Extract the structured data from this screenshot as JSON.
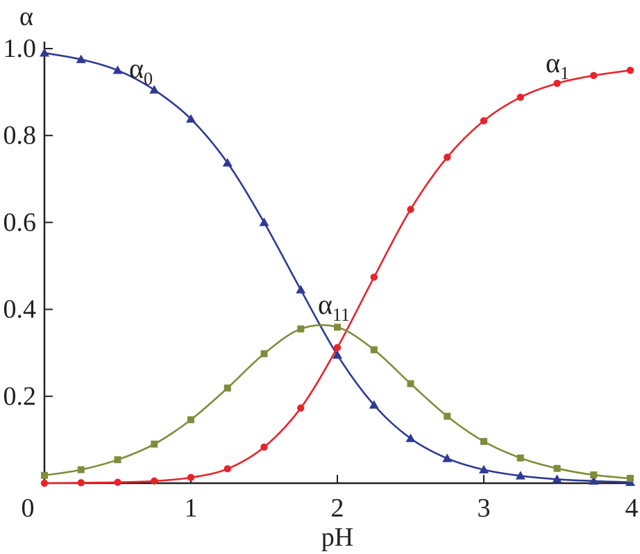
{
  "chart_data": {
    "type": "line",
    "title": "",
    "xlabel": "pH",
    "ylabel": "α",
    "xlim": [
      0,
      4
    ],
    "ylim": [
      0,
      1.0
    ],
    "x_ticks": [
      "0",
      "1",
      "2",
      "3",
      "4"
    ],
    "y_ticks": [
      "0.2",
      "0.4",
      "0.6",
      "0.8",
      "1.0"
    ],
    "grid": false,
    "legend": "none",
    "series": [
      {
        "name": "α0",
        "label_base": "α",
        "label_sub": "0",
        "color": "#2e3a93",
        "marker": "triangle",
        "x": [
          0,
          0.25,
          0.5,
          0.75,
          1.0,
          1.25,
          1.5,
          1.75,
          2.0,
          2.25,
          2.5,
          2.75,
          3.0,
          3.25,
          3.5,
          3.75,
          4.0
        ],
        "values": [
          0.99,
          0.975,
          0.95,
          0.905,
          0.838,
          0.737,
          0.6,
          0.445,
          0.295,
          0.18,
          0.103,
          0.057,
          0.031,
          0.017,
          0.009,
          0.005,
          0.002
        ]
      },
      {
        "name": "α1",
        "label_base": "α",
        "label_sub": "1",
        "color": "#e8232a",
        "marker": "circle",
        "x": [
          0,
          0.25,
          0.5,
          0.75,
          1.0,
          1.25,
          1.5,
          1.75,
          2.0,
          2.25,
          2.5,
          2.75,
          3.0,
          3.25,
          3.5,
          3.75,
          4.0
        ],
        "values": [
          0.0,
          0.001,
          0.002,
          0.005,
          0.013,
          0.033,
          0.083,
          0.173,
          0.312,
          0.474,
          0.63,
          0.75,
          0.834,
          0.888,
          0.92,
          0.938,
          0.95
        ]
      },
      {
        "name": "α11",
        "label_base": "α",
        "label_sub": "11",
        "color": "#7f8c3a",
        "marker": "square",
        "x": [
          0,
          0.25,
          0.5,
          0.75,
          1.0,
          1.25,
          1.5,
          1.75,
          2.0,
          2.25,
          2.5,
          2.75,
          3.0,
          3.25,
          3.5,
          3.75,
          4.0
        ],
        "values": [
          0.018,
          0.031,
          0.054,
          0.09,
          0.146,
          0.219,
          0.298,
          0.355,
          0.359,
          0.307,
          0.229,
          0.154,
          0.096,
          0.058,
          0.034,
          0.019,
          0.011
        ]
      }
    ]
  }
}
